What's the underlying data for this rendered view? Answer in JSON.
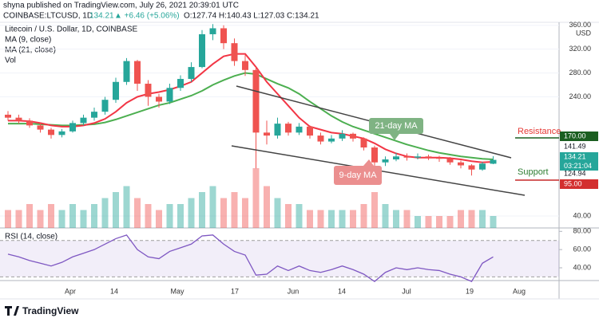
{
  "header": {
    "line1": "shyna published on TradingView.com, July 26, 2021 20:39:01 UTC",
    "symbol": "COINBASE:LTCUSD, 1D",
    "last": "134.21",
    "change": "▲ +6.46 (+5.06%)",
    "ohlc": "O:127.74 H:140.43 L:127.03 C:134.21"
  },
  "chart_data": {
    "type": "candlestick",
    "title": "Litecoin / U.S. Dollar, 1D, COINBASE",
    "legend": [
      "MA (9, close)",
      "MA (21, close)",
      "Vol"
    ],
    "currency": "USD",
    "ylim": [
      20,
      365
    ],
    "yticks": [
      {
        "value": 360,
        "label": "360.00"
      },
      {
        "value": 320,
        "label": "320.00"
      },
      {
        "value": 280,
        "label": "280.00"
      },
      {
        "value": 240,
        "label": "240.00"
      },
      {
        "value": 40,
        "label": "40.00"
      }
    ],
    "up_color": "#26a69a",
    "down_color": "#ef5350",
    "candles": [
      [
        210,
        216,
        200,
        205
      ],
      [
        205,
        210,
        195,
        200
      ],
      [
        200,
        204,
        188,
        192
      ],
      [
        192,
        196,
        180,
        185
      ],
      [
        185,
        188,
        170,
        176
      ],
      [
        176,
        186,
        172,
        182
      ],
      [
        182,
        200,
        180,
        196
      ],
      [
        196,
        210,
        192,
        205
      ],
      [
        205,
        222,
        200,
        215
      ],
      [
        215,
        240,
        210,
        235
      ],
      [
        235,
        272,
        230,
        265
      ],
      [
        265,
        305,
        260,
        300
      ],
      [
        300,
        302,
        250,
        262
      ],
      [
        262,
        268,
        225,
        240
      ],
      [
        240,
        245,
        222,
        232
      ],
      [
        232,
        262,
        228,
        255
      ],
      [
        255,
        276,
        250,
        270
      ],
      [
        270,
        298,
        265,
        290
      ],
      [
        290,
        352,
        288,
        345
      ],
      [
        345,
        362,
        335,
        355
      ],
      [
        355,
        360,
        320,
        330
      ],
      [
        330,
        338,
        292,
        300
      ],
      [
        300,
        310,
        275,
        285
      ],
      [
        285,
        290,
        120,
        180
      ],
      [
        180,
        200,
        160,
        175
      ],
      [
        175,
        205,
        170,
        195
      ],
      [
        195,
        198,
        175,
        180
      ],
      [
        180,
        196,
        176,
        190
      ],
      [
        190,
        192,
        170,
        175
      ],
      [
        175,
        180,
        160,
        165
      ],
      [
        165,
        176,
        162,
        170
      ],
      [
        170,
        184,
        166,
        178
      ],
      [
        178,
        180,
        165,
        170
      ],
      [
        170,
        172,
        150,
        155
      ],
      [
        155,
        158,
        118,
        130
      ],
      [
        130,
        140,
        124,
        135
      ],
      [
        135,
        146,
        132,
        140
      ],
      [
        140,
        145,
        133,
        138
      ],
      [
        138,
        145,
        135,
        140
      ],
      [
        140,
        143,
        134,
        138
      ],
      [
        138,
        141,
        131,
        136
      ],
      [
        136,
        139,
        126,
        130
      ],
      [
        130,
        133,
        120,
        125
      ],
      [
        125,
        127,
        108,
        118
      ],
      [
        118,
        131,
        116,
        128
      ],
      [
        127.74,
        140.43,
        127.03,
        134.21
      ]
    ],
    "volume": [
      3,
      3,
      4,
      3,
      4,
      3,
      4,
      3,
      4,
      5,
      6,
      7,
      5,
      4,
      3,
      4,
      4,
      5,
      6,
      7,
      5,
      6,
      5,
      10,
      7,
      5,
      4,
      4,
      3,
      3,
      3,
      3,
      3,
      4,
      6,
      4,
      3,
      3,
      2,
      2,
      2,
      2,
      3,
      3,
      3,
      2
    ],
    "ma9": {
      "color": "#f23645",
      "values": [
        200,
        200,
        199,
        196,
        192,
        190,
        190,
        192,
        196,
        203,
        215,
        230,
        240,
        245,
        248,
        252,
        258,
        265,
        280,
        295,
        308,
        312,
        312,
        290,
        265,
        245,
        225,
        205,
        190,
        185,
        180,
        178,
        174,
        170,
        162,
        152,
        145,
        140,
        138,
        138,
        138,
        137,
        135,
        132,
        130,
        131
      ]
    },
    "ma21": {
      "color": "#4caf50",
      "values": [
        195,
        195,
        195,
        194,
        193,
        192,
        192,
        193,
        194,
        197,
        202,
        208,
        214,
        220,
        226,
        230,
        236,
        242,
        250,
        260,
        268,
        275,
        280,
        278,
        270,
        262,
        255,
        245,
        232,
        220,
        208,
        198,
        190,
        184,
        178,
        172,
        166,
        160,
        155,
        150,
        146,
        143,
        140,
        138,
        136,
        135
      ]
    },
    "price_labels": [
      "170.00",
      "141.49",
      "134.21",
      "124.94",
      "95.00"
    ],
    "countdown": "03:21:04",
    "annotations": {
      "ma21": "21-day MA",
      "ma9": "9-day MA",
      "resistance": "Resistance",
      "support": "Support"
    },
    "xtick_labels": [
      "Apr",
      "14",
      "May",
      "17",
      "Jun",
      "14",
      "Jul",
      "19",
      "Aug"
    ],
    "rsi": {
      "title": "RSI (14, close)",
      "color": "#7e57c2",
      "ylim": [
        26,
        82
      ],
      "band": [
        30,
        70
      ],
      "yticks": [
        {
          "value": 80,
          "label": "80.00"
        },
        {
          "value": 60,
          "label": "60.00"
        },
        {
          "value": 40,
          "label": "40.00"
        }
      ],
      "values": [
        55,
        52,
        48,
        45,
        42,
        46,
        52,
        56,
        60,
        66,
        72,
        76,
        60,
        52,
        50,
        58,
        62,
        66,
        75,
        76,
        66,
        58,
        54,
        32,
        33,
        42,
        37,
        42,
        37,
        35,
        38,
        42,
        38,
        33,
        25,
        35,
        40,
        38,
        40,
        38,
        37,
        33,
        30,
        25,
        45,
        52
      ]
    }
  },
  "footer": "TradingView"
}
